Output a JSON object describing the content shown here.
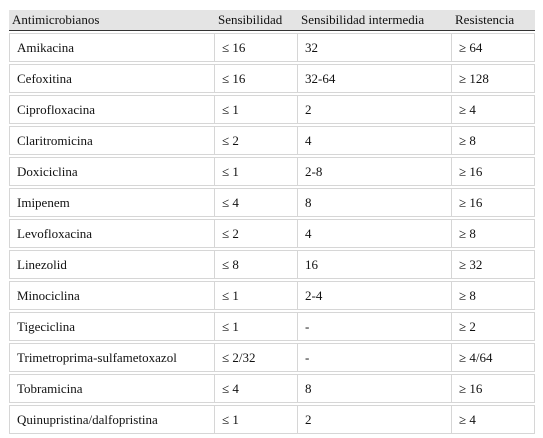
{
  "table": {
    "header": [
      "Antimicrobianos",
      "Sensibilidad",
      "Sensibilidad intermedia",
      "Resistencia"
    ],
    "rows": [
      [
        "Amikacina",
        "≤ 16",
        "32",
        "≥ 64"
      ],
      [
        "Cefoxitina",
        "≤ 16",
        "32-64",
        "≥ 128"
      ],
      [
        "Ciprofloxacina",
        "≤ 1",
        "2",
        "≥ 4"
      ],
      [
        "Claritromicina",
        "≤ 2",
        "4",
        "≥ 8"
      ],
      [
        "Doxiciclina",
        "≤ 1",
        "2-8",
        "≥ 16"
      ],
      [
        "Imipenem",
        "≤ 4",
        "8",
        "≥ 16"
      ],
      [
        "Levofloxacina",
        "≤ 2",
        "4",
        "≥ 8"
      ],
      [
        "Linezolid",
        "≤ 8",
        "16",
        "≥ 32"
      ],
      [
        "Minociclina",
        "≤ 1",
        "2-4",
        "≥ 8"
      ],
      [
        "Tigeciclina",
        "≤ 1",
        "-",
        "≥ 2"
      ],
      [
        "Trimetroprima-sulfametoxazol",
        "≤ 2/32",
        "-",
        "≥ 4/64"
      ],
      [
        "Tobramicina",
        "≤ 4",
        "8",
        "≥ 16"
      ],
      [
        "Quinupristina/dalfopristina",
        "≤ 1",
        "2",
        "≥ 4"
      ]
    ]
  }
}
